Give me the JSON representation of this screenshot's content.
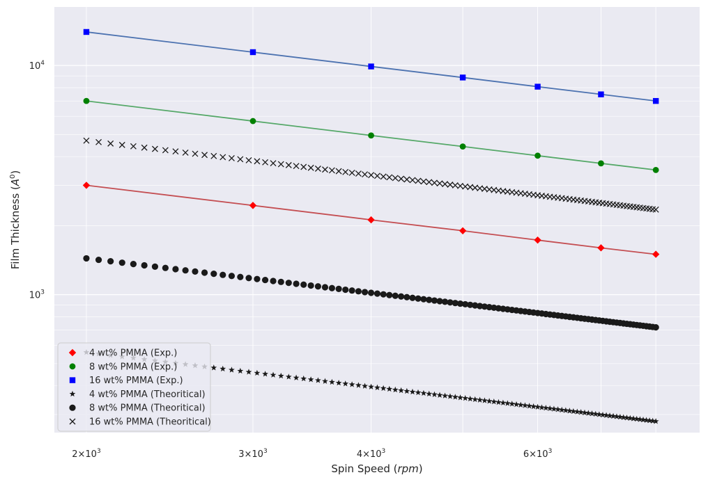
{
  "chart_data": {
    "type": "scatter",
    "xscale": "log",
    "yscale": "log",
    "xlabel": "Spin Speed ($rpm$)",
    "ylabel": "Film Thickness ($A^0$)",
    "xlim": [
      1850,
      8900
    ],
    "ylim": [
      250,
      18000
    ],
    "grid": true,
    "legend_position": "lower-left",
    "x_major_ticks": [
      {
        "value": 2000,
        "label": "2×10",
        "exp": "3"
      },
      {
        "value": 3000,
        "label": "3×10",
        "exp": "3"
      },
      {
        "value": 4000,
        "label": "4×10",
        "exp": "3"
      },
      {
        "value": 6000,
        "label": "6×10",
        "exp": "3"
      }
    ],
    "y_major_ticks": [
      {
        "value": 1000,
        "label": "10",
        "exp": "3"
      },
      {
        "value": 10000,
        "label": "10",
        "exp": "4"
      }
    ],
    "experimental_x": [
      2000,
      3000,
      4000,
      5000,
      6000,
      7000,
      8000
    ],
    "series": [
      {
        "name": "4 wt% PMMA (Exp.)",
        "kind": "exp",
        "marker": "diamond",
        "color": "#ff0000",
        "fit_color": "#c44e52",
        "values": [
          3000,
          2450,
          2120,
          1900,
          1730,
          1600,
          1500
        ]
      },
      {
        "name": "8 wt% PMMA (Exp.)",
        "kind": "exp",
        "marker": "circle",
        "color": "#008000",
        "fit_color": "#55a868",
        "values": [
          7000,
          5720,
          4950,
          4430,
          4040,
          3740,
          3500
        ]
      },
      {
        "name": "16 wt% PMMA (Exp.)",
        "kind": "exp",
        "marker": "square",
        "color": "#0000ff",
        "fit_color": "#4c72b0",
        "values": [
          14000,
          11430,
          9900,
          8860,
          8080,
          7480,
          7000
        ]
      },
      {
        "name": "4 wt% PMMA (Theoritical)",
        "kind": "theory",
        "marker": "star",
        "color": "#1a1a1a",
        "x_start": 2000,
        "x_end": 8000,
        "n_points": 100,
        "y_at_start": 560,
        "exponent": -0.5
      },
      {
        "name": "8 wt% PMMA (Theoritical)",
        "kind": "theory",
        "marker": "circle",
        "color": "#1a1a1a",
        "x_start": 2000,
        "x_end": 8000,
        "n_points": 100,
        "y_at_start": 1440,
        "exponent": -0.5
      },
      {
        "name": "16 wt% PMMA (Theoritical)",
        "kind": "theory",
        "marker": "x",
        "color": "#1a1a1a",
        "x_start": 2000,
        "x_end": 8000,
        "n_points": 100,
        "y_at_start": 4700,
        "exponent": -0.5
      }
    ],
    "colors": {
      "background": "#eaeaf2",
      "grid": "#ffffff",
      "text": "#262626"
    }
  }
}
